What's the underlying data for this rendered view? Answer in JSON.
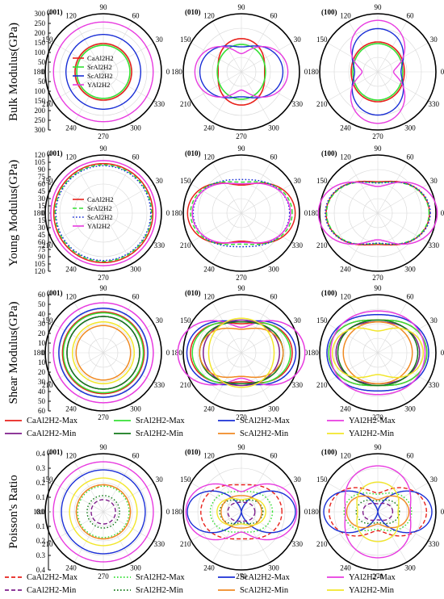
{
  "figure": {
    "angle_labels": [
      "90",
      "60",
      "30",
      "0",
      "330",
      "300",
      "270",
      "240",
      "210",
      "180",
      "150",
      "120"
    ],
    "planes": [
      "(001)",
      "(010)",
      "(100)"
    ]
  },
  "colors": {
    "CaAl2H2-Max": "#e8211b",
    "SrAl2H2-Max": "#35e035",
    "ScAl2H2-Max": "#1a2fd6",
    "YAl2H2-Max": "#e83be0",
    "CaAl2H2-Min": "#7f1e8c",
    "SrAl2H2-Min": "#137a1a",
    "ScAl2H2-Min": "#f08a22",
    "YAl2H2-Min": "#f2e62a"
  },
  "legends": {
    "shear": [
      [
        "CaAl2H2-Max",
        "SrAl2H2-Max",
        "ScAl2H2-Max",
        "YAl2H2-Max"
      ],
      [
        "CaAl2H2-Min",
        "SrAl2H2-Min",
        "ScAl2H2-Min",
        "YAl2H2-Min"
      ]
    ],
    "poisson": [
      [
        "CaAl2H2-Max",
        "SrAl2H2-Max",
        "ScAl2H2-Max",
        "YAl2H2-Max"
      ],
      [
        "CaAl2H2-Min",
        "SrAl2H2-Min",
        "ScAl2H2-Min",
        "YAl2H2-Min"
      ]
    ]
  },
  "chart_data": [
    {
      "type": "polar",
      "ylabel": "Bulk Modulus(GPa)",
      "radial_ticks": [
        "300",
        "250",
        "200",
        "150",
        "100",
        "50",
        "0",
        "50",
        "100",
        "150",
        "200",
        "250",
        "300"
      ],
      "rmax": 350,
      "inset_legend": [
        "CaAl2H2",
        "SrAl2H2",
        "ScAl2H2",
        "YAl2H2"
      ],
      "series": [
        {
          "name": "CaAl2H2",
          "color": "#e8211b",
          "dash": "solid",
          "width": 1.6,
          "r001": [
            170,
            170,
            0,
            4
          ],
          "r010": [
            140,
            200,
            0,
            2
          ],
          "r100": [
            160,
            180,
            0,
            2
          ]
        },
        {
          "name": "SrAl2H2",
          "color": "#35e035",
          "dash": "solid",
          "width": 1.6,
          "r001": [
            160,
            160,
            0,
            4
          ],
          "r010": [
            145,
            165,
            0,
            2
          ],
          "r100": [
            150,
            170,
            0,
            2
          ]
        },
        {
          "name": "ScAl2H2",
          "color": "#1a2fd6",
          "dash": "solid",
          "width": 1.4,
          "r001": [
            225,
            225,
            0,
            4
          ],
          "r010": [
            250,
            150,
            0,
            2
          ],
          "r100": [
            140,
            260,
            0,
            2
          ]
        },
        {
          "name": "YAl2H2",
          "color": "#e83be0",
          "dash": "solid",
          "width": 1.4,
          "r001": [
            300,
            300,
            0,
            4
          ],
          "r010": [
            280,
            110,
            0,
            2
          ],
          "r100": [
            95,
            310,
            0,
            2
          ]
        }
      ]
    },
    {
      "type": "polar",
      "ylabel": "Young Modulus(GPa)",
      "radial_ticks": [
        "120",
        "105",
        "90",
        "75",
        "60",
        "45",
        "30",
        "15",
        "0",
        "15",
        "30",
        "45",
        "60",
        "75",
        "90",
        "105",
        "120"
      ],
      "rmax": 135,
      "inset_legend": [
        "CaAl2H2",
        "SrAl2H2",
        "ScAl2H2",
        "YAl2H2"
      ],
      "series": [
        {
          "name": "CaAl2H2",
          "color": "#e8211b",
          "dash": "solid",
          "width": 1.5,
          "r001": [
            115,
            115,
            0,
            4
          ],
          "r010": [
            105,
            85,
            20,
            2
          ],
          "r100": [
            98,
            95,
            22,
            2
          ]
        },
        {
          "name": "SrAl2H2",
          "color": "#35e035",
          "dash": "dash",
          "width": 1.5,
          "r001": [
            112,
            112,
            0,
            4
          ],
          "r010": [
            102,
            88,
            16,
            2
          ],
          "r100": [
            95,
            95,
            24,
            2
          ]
        },
        {
          "name": "ScAl2H2",
          "color": "#1a2fd6",
          "dash": "dot",
          "width": 1.5,
          "r001": [
            110,
            110,
            0,
            4
          ],
          "r010": [
            98,
            92,
            14,
            2
          ],
          "r100": [
            102,
            90,
            20,
            2
          ]
        },
        {
          "name": "YAl2H2",
          "color": "#e83be0",
          "dash": "solid",
          "width": 1.5,
          "r001": [
            122,
            122,
            0,
            4
          ],
          "r010": [
            100,
            82,
            14,
            2
          ],
          "r100": [
            112,
            88,
            26,
            2
          ]
        }
      ]
    },
    {
      "type": "polar",
      "ylabel": "Shear Modulus(GPa)",
      "radial_ticks": [
        "60",
        "50",
        "40",
        "30",
        "20",
        "10",
        "0",
        "10",
        "20",
        "30",
        "40",
        "50",
        "60"
      ],
      "rmax": 64,
      "series": [
        {
          "name": "CaAl2H2-Max",
          "color": "#e8211b",
          "dash": "solid",
          "width": 1.5,
          "r001": [
            45,
            45,
            0,
            4
          ],
          "r010": [
            48,
            40,
            8,
            2
          ],
          "r100": [
            46,
            44,
            8,
            2
          ]
        },
        {
          "name": "SrAl2H2-Max",
          "color": "#35e035",
          "dash": "solid",
          "width": 1.5,
          "r001": [
            44,
            44,
            0,
            4
          ],
          "r010": [
            46,
            42,
            8,
            2
          ],
          "r100": [
            45,
            45,
            9,
            2
          ]
        },
        {
          "name": "ScAl2H2-Max",
          "color": "#1a2fd6",
          "dash": "solid",
          "width": 1.5,
          "r001": [
            49,
            49,
            0,
            4
          ],
          "r010": [
            50,
            44,
            10,
            2
          ],
          "r100": [
            46,
            52,
            10,
            2
          ]
        },
        {
          "name": "YAl2H2-Max",
          "color": "#e83be0",
          "dash": "solid",
          "width": 1.5,
          "r001": [
            55,
            55,
            0,
            4
          ],
          "r010": [
            58,
            40,
            12,
            2
          ],
          "r100": [
            40,
            58,
            12,
            2
          ]
        },
        {
          "name": "CaAl2H2-Min",
          "color": "#7f1e8c",
          "dash": "solid",
          "width": 1.5,
          "r001": [
            40,
            40,
            0,
            4
          ],
          "r010": [
            36,
            42,
            6,
            2
          ],
          "r100": [
            40,
            40,
            6,
            2
          ]
        },
        {
          "name": "SrAl2H2-Min",
          "color": "#137a1a",
          "dash": "solid",
          "width": 1.5,
          "r001": [
            40,
            40,
            0,
            4
          ],
          "r010": [
            40,
            40,
            6,
            2
          ],
          "r100": [
            38,
            42,
            6,
            2
          ]
        },
        {
          "name": "ScAl2H2-Min",
          "color": "#f08a22",
          "dash": "solid",
          "width": 1.5,
          "r001": [
            30,
            30,
            0,
            4
          ],
          "r010": [
            40,
            32,
            6,
            2
          ],
          "r100": [
            32,
            40,
            6,
            2
          ]
        },
        {
          "name": "YAl2H2-Min",
          "color": "#f2e62a",
          "dash": "solid",
          "width": 1.5,
          "r001": [
            34,
            34,
            0,
            4
          ],
          "r010": [
            30,
            44,
            6,
            2
          ],
          "r100": [
            44,
            30,
            6,
            2
          ]
        }
      ]
    },
    {
      "type": "polar",
      "ylabel": "Poisson's Ratio",
      "radial_ticks": [
        "0.4",
        "0.3",
        "0.2",
        "0.1",
        "0.0",
        "0.1",
        "0.2",
        "0.3",
        "0.4"
      ],
      "rmax": 0.43,
      "series": [
        {
          "name": "CaAl2H2-Max",
          "color": "#e8211b",
          "dash": "dash",
          "width": 1.4,
          "r001": [
            0.2,
            0.2,
            0,
            4
          ],
          "r010": [
            0.22,
            0.28,
            0.08,
            2
          ],
          "r100": [
            0.28,
            0.22,
            0.08,
            2
          ]
        },
        {
          "name": "SrAl2H2-Max",
          "color": "#35e035",
          "dash": "dot",
          "width": 1.4,
          "r001": [
            0.19,
            0.19,
            0,
            4
          ],
          "r010": [
            0.18,
            0.2,
            0.05,
            2
          ],
          "r100": [
            0.2,
            0.18,
            0.05,
            2
          ]
        },
        {
          "name": "ScAl2H2-Max",
          "color": "#1a2fd6",
          "dash": "solid",
          "width": 1.4,
          "r001": [
            0.31,
            0.31,
            0,
            4
          ],
          "r010": [
            0.2,
            0.2,
            0.2,
            2
          ],
          "r100": [
            0.2,
            0.2,
            0.2,
            2
          ]
        },
        {
          "name": "YAl2H2-Max",
          "color": "#e83be0",
          "dash": "solid",
          "width": 1.4,
          "r001": [
            0.37,
            0.37,
            0,
            4
          ],
          "r010": [
            0.36,
            0.2,
            0.05,
            2
          ],
          "r100": [
            0.2,
            0.38,
            0.04,
            2
          ]
        },
        {
          "name": "CaAl2H2-Min",
          "color": "#7f1e8c",
          "dash": "dash",
          "width": 1.4,
          "r001": [
            0.09,
            0.09,
            0,
            4
          ],
          "r010": [
            0.08,
            0.09,
            0.02,
            2
          ],
          "r100": [
            0.09,
            0.08,
            0.02,
            2
          ]
        },
        {
          "name": "SrAl2H2-Min",
          "color": "#137a1a",
          "dash": "dot",
          "width": 1.4,
          "r001": [
            0.12,
            0.12,
            0,
            4
          ],
          "r010": [
            0.12,
            0.12,
            0.04,
            2
          ],
          "r100": [
            0.12,
            0.12,
            0.04,
            2
          ]
        },
        {
          "name": "ScAl2H2-Min",
          "color": "#f08a22",
          "dash": "solid",
          "width": 1.4,
          "r001": [
            0.2,
            0.2,
            0,
            4
          ],
          "r010": [
            0.12,
            0.15,
            0.03,
            2
          ],
          "r100": [
            0.2,
            0.12,
            0.03,
            2
          ]
        },
        {
          "name": "YAl2H2-Min",
          "color": "#f2e62a",
          "dash": "solid",
          "width": 1.4,
          "r001": [
            0.25,
            0.25,
            0,
            4
          ],
          "r010": [
            0.15,
            0.12,
            0.03,
            2
          ],
          "r100": [
            0.12,
            0.25,
            0.03,
            2
          ]
        }
      ]
    }
  ]
}
